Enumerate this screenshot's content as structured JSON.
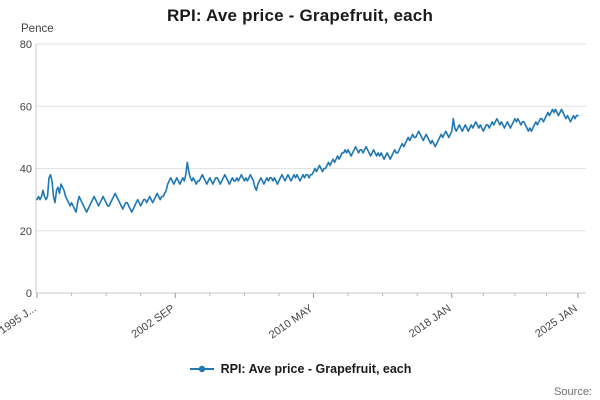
{
  "chart": {
    "title": "RPI: Ave price - Grapefruit, each",
    "unit": "Pence",
    "legend": "RPI: Ave price - Grapefruit, each",
    "source": "Source:"
  },
  "chart_data": {
    "type": "line",
    "title": "RPI: Ave price - Grapefruit, each",
    "xlabel": "",
    "ylabel": "Pence",
    "ylim": [
      0,
      80
    ],
    "yticks": [
      0,
      20,
      40,
      60,
      80
    ],
    "grid": true,
    "legend_position": "bottom",
    "line_color": "#1f77b4",
    "x_start": "1995 JAN",
    "x_end": "2025 JAN",
    "frequency": "monthly",
    "xticks": [
      {
        "label": "1995 J...",
        "m": 0
      },
      {
        "label": "2002 SEP",
        "m": 92
      },
      {
        "label": "2010 MAY",
        "m": 184
      },
      {
        "label": "2018 JAN",
        "m": 276
      },
      {
        "label": "2025 JAN",
        "m": 360
      }
    ],
    "values": [
      30,
      31,
      30,
      31,
      33,
      31,
      30,
      31,
      37,
      38,
      36,
      31,
      29,
      33,
      34,
      32,
      35,
      34,
      33,
      31,
      30,
      29,
      28,
      29,
      28,
      27,
      26,
      29,
      31,
      30,
      29,
      28,
      27,
      26,
      27,
      28,
      29,
      30,
      31,
      30,
      29,
      28,
      29,
      30,
      31,
      30,
      29,
      28,
      28,
      29,
      30,
      31,
      32,
      31,
      30,
      29,
      28,
      27,
      28,
      29,
      29,
      28,
      27,
      26,
      27,
      28,
      29,
      30,
      29,
      28,
      29,
      30,
      30,
      29,
      30,
      31,
      30,
      29,
      30,
      31,
      32,
      31,
      30,
      31,
      31,
      32,
      33,
      35,
      36,
      37,
      36,
      35,
      36,
      37,
      36,
      35,
      36,
      37,
      36,
      38,
      42,
      39,
      37,
      36,
      37,
      36,
      35,
      36,
      36,
      37,
      38,
      37,
      36,
      35,
      36,
      37,
      36,
      35,
      36,
      37,
      37,
      36,
      35,
      36,
      37,
      38,
      37,
      36,
      35,
      36,
      37,
      36,
      36,
      37,
      36,
      37,
      38,
      37,
      36,
      37,
      36,
      37,
      38,
      37,
      36,
      34,
      33,
      35,
      36,
      37,
      36,
      35,
      36,
      37,
      36,
      37,
      37,
      36,
      37,
      36,
      35,
      36,
      37,
      38,
      37,
      36,
      37,
      38,
      37,
      36,
      37,
      38,
      37,
      38,
      37,
      36,
      37,
      38,
      37,
      38,
      38,
      37,
      38,
      38,
      39,
      40,
      39,
      40,
      41,
      40,
      39,
      40,
      40,
      41,
      42,
      41,
      42,
      43,
      42,
      43,
      44,
      43,
      44,
      45,
      45,
      46,
      45,
      46,
      45,
      44,
      45,
      46,
      47,
      46,
      45,
      46,
      46,
      45,
      46,
      47,
      46,
      45,
      44,
      45,
      46,
      45,
      44,
      45,
      44,
      45,
      44,
      43,
      44,
      45,
      44,
      43,
      44,
      45,
      46,
      45,
      45,
      46,
      47,
      48,
      47,
      48,
      49,
      50,
      49,
      50,
      51,
      50,
      50,
      51,
      52,
      51,
      50,
      49,
      50,
      51,
      50,
      49,
      48,
      49,
      48,
      47,
      48,
      49,
      50,
      51,
      50,
      51,
      52,
      51,
      50,
      51,
      52,
      56,
      53,
      52,
      53,
      54,
      53,
      52,
      53,
      54,
      53,
      52,
      53,
      54,
      53,
      54,
      55,
      54,
      53,
      54,
      53,
      52,
      53,
      54,
      54,
      53,
      54,
      55,
      54,
      55,
      56,
      55,
      54,
      55,
      54,
      53,
      54,
      55,
      54,
      53,
      54,
      55,
      56,
      55,
      56,
      55,
      54,
      55,
      55,
      54,
      53,
      52,
      53,
      52,
      53,
      54,
      55,
      54,
      55,
      56,
      56,
      55,
      56,
      57,
      58,
      57,
      58,
      59,
      58,
      59,
      58,
      57,
      58,
      59,
      58,
      57,
      56,
      57,
      56,
      55,
      56,
      57,
      56,
      57,
      57
    ]
  }
}
